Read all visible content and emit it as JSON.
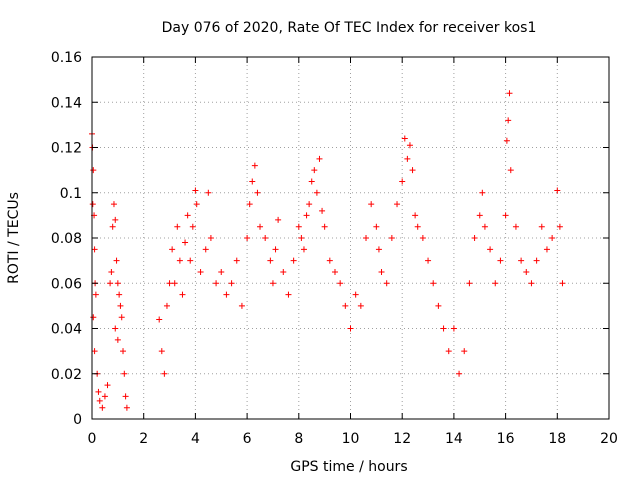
{
  "chart_data": {
    "type": "scatter",
    "title": "Day 076 of 2020, Rate Of TEC Index for receiver kos1",
    "xlabel": "GPS time / hours",
    "ylabel": "ROTI / TECUs",
    "xlim": [
      0,
      20
    ],
    "ylim": [
      0,
      0.16
    ],
    "x_ticks": [
      0,
      2,
      4,
      6,
      8,
      10,
      12,
      14,
      16,
      18,
      20
    ],
    "y_ticks": [
      0,
      0.02,
      0.04,
      0.06,
      0.08,
      0.1,
      0.12,
      0.14,
      0.16
    ],
    "x_tick_labels": [
      "0",
      "2",
      "4",
      "6",
      "8",
      "10",
      "12",
      "14",
      "16",
      "18",
      "20"
    ],
    "y_tick_labels": [
      "0",
      "0.02",
      "0.04",
      "0.06",
      "0.08",
      "0.1",
      "0.12",
      "0.14",
      "0.16"
    ],
    "grid": true,
    "marker": "plus",
    "color": "#ff0000",
    "series": [
      {
        "points": [
          [
            0.0,
            0.126
          ],
          [
            0.02,
            0.12
          ],
          [
            0.05,
            0.11
          ],
          [
            0.03,
            0.095
          ],
          [
            0.08,
            0.09
          ],
          [
            0.1,
            0.075
          ],
          [
            0.12,
            0.06
          ],
          [
            0.15,
            0.055
          ],
          [
            0.05,
            0.045
          ],
          [
            0.1,
            0.03
          ],
          [
            0.2,
            0.02
          ],
          [
            0.25,
            0.012
          ],
          [
            0.3,
            0.008
          ],
          [
            0.4,
            0.005
          ],
          [
            0.5,
            0.01
          ],
          [
            0.6,
            0.015
          ],
          [
            0.7,
            0.06
          ],
          [
            0.75,
            0.065
          ],
          [
            0.8,
            0.085
          ],
          [
            0.85,
            0.095
          ],
          [
            0.9,
            0.088
          ],
          [
            0.95,
            0.07
          ],
          [
            1.0,
            0.06
          ],
          [
            1.05,
            0.055
          ],
          [
            1.1,
            0.05
          ],
          [
            1.15,
            0.045
          ],
          [
            1.2,
            0.03
          ],
          [
            1.25,
            0.02
          ],
          [
            1.3,
            0.01
          ],
          [
            1.35,
            0.005
          ],
          [
            0.9,
            0.04
          ],
          [
            1.0,
            0.035
          ],
          [
            2.6,
            0.044
          ],
          [
            2.7,
            0.03
          ],
          [
            2.8,
            0.02
          ],
          [
            2.9,
            0.05
          ],
          [
            3.0,
            0.06
          ],
          [
            3.1,
            0.075
          ],
          [
            3.2,
            0.06
          ],
          [
            3.3,
            0.085
          ],
          [
            3.4,
            0.07
          ],
          [
            3.5,
            0.055
          ],
          [
            3.6,
            0.078
          ],
          [
            3.7,
            0.09
          ],
          [
            3.8,
            0.07
          ],
          [
            3.9,
            0.085
          ],
          [
            4.0,
            0.101
          ],
          [
            4.05,
            0.095
          ],
          [
            4.2,
            0.065
          ],
          [
            4.4,
            0.075
          ],
          [
            4.5,
            0.1
          ],
          [
            4.6,
            0.08
          ],
          [
            4.8,
            0.06
          ],
          [
            5.0,
            0.065
          ],
          [
            5.2,
            0.055
          ],
          [
            5.4,
            0.06
          ],
          [
            5.6,
            0.07
          ],
          [
            5.8,
            0.05
          ],
          [
            6.0,
            0.08
          ],
          [
            6.1,
            0.095
          ],
          [
            6.2,
            0.105
          ],
          [
            6.3,
            0.112
          ],
          [
            6.4,
            0.1
          ],
          [
            6.5,
            0.085
          ],
          [
            6.7,
            0.08
          ],
          [
            6.9,
            0.07
          ],
          [
            7.0,
            0.06
          ],
          [
            7.1,
            0.075
          ],
          [
            7.2,
            0.088
          ],
          [
            7.4,
            0.065
          ],
          [
            7.6,
            0.055
          ],
          [
            7.8,
            0.07
          ],
          [
            8.0,
            0.085
          ],
          [
            8.1,
            0.08
          ],
          [
            8.2,
            0.075
          ],
          [
            8.3,
            0.09
          ],
          [
            8.4,
            0.095
          ],
          [
            8.5,
            0.105
          ],
          [
            8.6,
            0.11
          ],
          [
            8.7,
            0.1
          ],
          [
            8.8,
            0.115
          ],
          [
            8.9,
            0.092
          ],
          [
            9.0,
            0.085
          ],
          [
            9.2,
            0.07
          ],
          [
            9.4,
            0.065
          ],
          [
            9.6,
            0.06
          ],
          [
            9.8,
            0.05
          ],
          [
            10.0,
            0.04
          ],
          [
            10.2,
            0.055
          ],
          [
            10.4,
            0.05
          ],
          [
            10.6,
            0.08
          ],
          [
            10.8,
            0.095
          ],
          [
            11.0,
            0.085
          ],
          [
            11.1,
            0.075
          ],
          [
            11.2,
            0.065
          ],
          [
            11.4,
            0.06
          ],
          [
            11.6,
            0.08
          ],
          [
            11.8,
            0.095
          ],
          [
            12.0,
            0.105
          ],
          [
            12.1,
            0.124
          ],
          [
            12.2,
            0.115
          ],
          [
            12.3,
            0.121
          ],
          [
            12.4,
            0.11
          ],
          [
            12.5,
            0.09
          ],
          [
            12.6,
            0.085
          ],
          [
            12.8,
            0.08
          ],
          [
            13.0,
            0.07
          ],
          [
            13.2,
            0.06
          ],
          [
            13.4,
            0.05
          ],
          [
            13.6,
            0.04
          ],
          [
            13.8,
            0.03
          ],
          [
            14.0,
            0.04
          ],
          [
            14.2,
            0.02
          ],
          [
            14.4,
            0.03
          ],
          [
            14.6,
            0.06
          ],
          [
            14.8,
            0.08
          ],
          [
            15.0,
            0.09
          ],
          [
            15.1,
            0.1
          ],
          [
            15.2,
            0.085
          ],
          [
            15.4,
            0.075
          ],
          [
            15.6,
            0.06
          ],
          [
            15.8,
            0.07
          ],
          [
            16.0,
            0.09
          ],
          [
            16.05,
            0.123
          ],
          [
            16.1,
            0.132
          ],
          [
            16.15,
            0.144
          ],
          [
            16.2,
            0.11
          ],
          [
            16.4,
            0.085
          ],
          [
            16.6,
            0.07
          ],
          [
            16.8,
            0.065
          ],
          [
            17.0,
            0.06
          ],
          [
            17.2,
            0.07
          ],
          [
            17.4,
            0.085
          ],
          [
            17.6,
            0.075
          ],
          [
            17.8,
            0.08
          ],
          [
            18.0,
            0.101
          ],
          [
            18.1,
            0.085
          ],
          [
            18.2,
            0.06
          ]
        ]
      }
    ]
  }
}
